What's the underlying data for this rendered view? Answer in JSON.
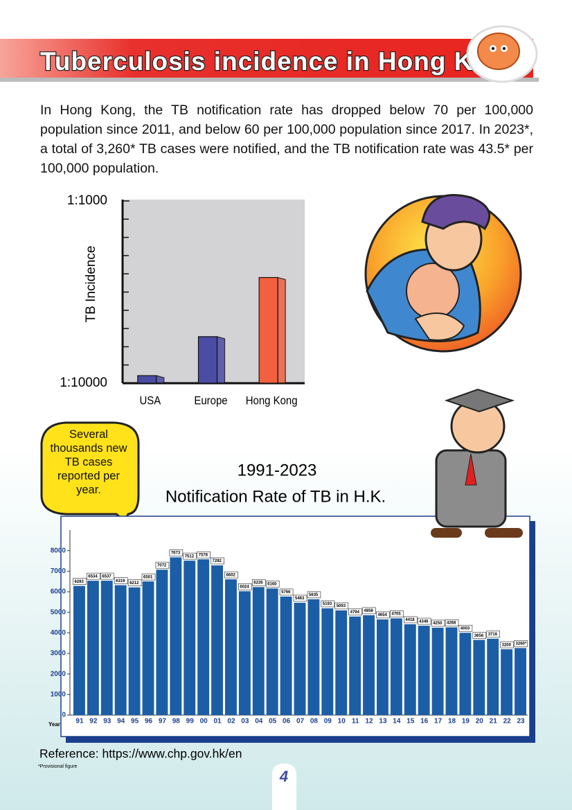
{
  "header": {
    "title": "Tuberculosis incidence in Hong Kong"
  },
  "intro": "In Hong Kong, the TB notification rate has dropped below 70 per 100,000 population since 2011, and below 60 per 100,000 population since 2017. In 2023*, a total of 3,260* TB cases were notified, and the TB notification rate was 43.5* per 100,000 population.",
  "chart_data": [
    {
      "type": "bar",
      "y_label": "TB Incidence",
      "categories": [
        "USA",
        "Europe",
        "Hong Kong"
      ],
      "values": [
        0.00011,
        0.00018,
        0.00038
      ],
      "colors": [
        "#4b4ca3",
        "#4b4ca3",
        "#f2603f"
      ],
      "log_scale": true,
      "ylim": [
        0.0001,
        0.001
      ],
      "yticks": [
        {
          "value": 0.001,
          "label": "1:1000"
        },
        {
          "value": 0.0001,
          "label": "1:10000"
        }
      ]
    },
    {
      "type": "bar",
      "title": "1991-2023",
      "subtitle": "Notification Rate of TB in H.K.",
      "x_label": "Year",
      "categories": [
        "91",
        "92",
        "93",
        "94",
        "95",
        "96",
        "97",
        "98",
        "99",
        "00",
        "01",
        "02",
        "03",
        "04",
        "05",
        "06",
        "07",
        "08",
        "09",
        "10",
        "11",
        "12",
        "13",
        "14",
        "15",
        "16",
        "17",
        "18",
        "19",
        "20",
        "21",
        "22",
        "23"
      ],
      "values": [
        6283,
        6534,
        6537,
        6319,
        6212,
        6501,
        7072,
        7673,
        7512,
        7578,
        7282,
        6602,
        6024,
        6226,
        6160,
        5766,
        5463,
        5635,
        5193,
        5093,
        4794,
        4858,
        4654,
        4705,
        4418,
        4346,
        4250,
        4268,
        4003,
        3656,
        3716,
        3200,
        3260
      ],
      "value_labels": [
        "6283",
        "6534",
        "6537",
        "6319",
        "6212",
        "6501",
        "7072",
        "7673",
        "7512",
        "7578",
        "7282",
        "6602",
        "6024",
        "6226",
        "6160",
        "5766",
        "5463",
        "5635",
        "5193",
        "5093",
        "4794",
        "4858",
        "4654",
        "4705",
        "4418",
        "4346",
        "4250",
        "4268",
        "4003",
        "3656",
        "3716",
        "3200",
        "3260*"
      ],
      "color": "#1c5ea6",
      "ylim": [
        0,
        9000
      ],
      "yticks": [
        0,
        1000,
        2000,
        3000,
        4000,
        5000,
        6000,
        7000,
        8000
      ]
    }
  ],
  "callout": "Several thousands new TB cases reported per year.",
  "reference": "Reference: https://www.chp.gov.hk/en",
  "footnote": "*Provisional figure",
  "page_number": "4"
}
